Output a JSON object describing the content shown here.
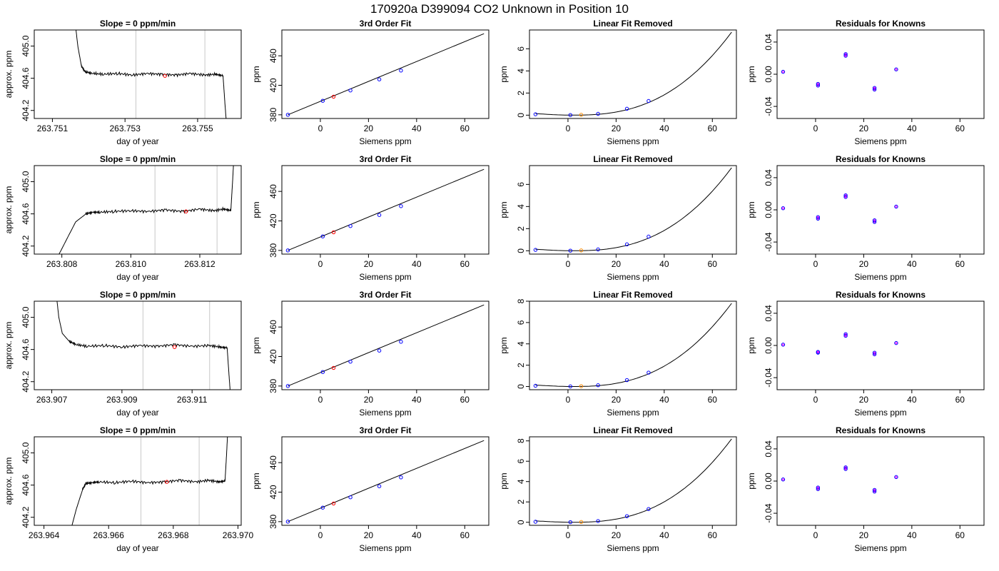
{
  "figure_title": "170920a      D399094    CO2 Unknown in Position  10",
  "colors": {
    "line": "#000000",
    "known": "#0000ff",
    "unknown_fit": "#ff0000",
    "unknown_lin": "#ff8c00",
    "resid_inner": "#ff00ff",
    "vline": "#c8c8c8"
  },
  "chart_data": [
    {
      "row": 0,
      "col": 0,
      "type": "line",
      "title": "Slope =  0  ppm/min",
      "xlabel": "day of year",
      "ylabel": "approx. ppm",
      "xlim": [
        263.7505,
        263.7562
      ],
      "ylim": [
        404.1,
        405.2
      ],
      "xticks": [
        263.751,
        263.753,
        263.755
      ],
      "xticklabels": [
        "263.751",
        "263.753",
        "263.755"
      ],
      "yticks": [
        404.2,
        404.6,
        405.0
      ],
      "yticklabels": [
        "404.2",
        "404.6",
        "405.0"
      ],
      "vlines": [
        263.7533,
        263.7552
      ],
      "series": [
        {
          "x": [
            263.7516,
            263.7517,
            263.7518,
            263.7519,
            263.7521,
            263.7524,
            263.7528,
            263.7532,
            263.7536,
            263.754,
            263.7544,
            263.7548,
            263.7552,
            263.7555,
            263.7557,
            263.75575,
            263.7558
          ],
          "y": [
            405.4,
            405.0,
            404.75,
            404.68,
            404.66,
            404.65,
            404.66,
            404.64,
            404.66,
            404.65,
            404.64,
            404.66,
            404.64,
            404.65,
            404.63,
            404.3,
            404.0
          ]
        }
      ],
      "points": [
        {
          "x": 263.7541,
          "y": 404.63
        }
      ]
    },
    {
      "row": 0,
      "col": 1,
      "type": "line",
      "title": "3rd Order Fit",
      "xlabel": "Siemens ppm",
      "ylabel": "ppm",
      "xlim": [
        -16,
        70
      ],
      "ylim": [
        375,
        495
      ],
      "xticks": [
        0,
        20,
        40,
        60
      ],
      "xticklabels": [
        "0",
        "20",
        "40",
        "60"
      ],
      "yticks": [
        380,
        420,
        460
      ],
      "yticklabels": [
        "380",
        "420",
        "460"
      ],
      "curve": {
        "x": [
          -13.5,
          68
        ],
        "y": [
          380,
          490
        ]
      },
      "known_points": [
        {
          "x": -13.5,
          "y": 380
        },
        {
          "x": 1,
          "y": 399
        },
        {
          "x": 12.5,
          "y": 413
        },
        {
          "x": 24.5,
          "y": 428
        },
        {
          "x": 33.5,
          "y": 440
        }
      ],
      "unknown_point": {
        "x": 5.5,
        "y": 404.6
      }
    },
    {
      "row": 0,
      "col": 2,
      "type": "line",
      "title": "Linear Fit Removed",
      "xlabel": "Siemens ppm",
      "ylabel": "ppm",
      "xlim": [
        -16,
        70
      ],
      "ylim": [
        -0.3,
        7.7
      ],
      "xticks": [
        0,
        20,
        40,
        60
      ],
      "xticklabels": [
        "0",
        "20",
        "40",
        "60"
      ],
      "yticks": [
        0,
        2,
        4,
        6
      ],
      "yticklabels": [
        "0",
        "2",
        "4",
        "6"
      ],
      "curve_end": 7.5,
      "known_points": [
        {
          "x": -13.5,
          "y": 0.08
        },
        {
          "x": 1,
          "y": 0.01
        },
        {
          "x": 12.5,
          "y": 0.12
        },
        {
          "x": 24.5,
          "y": 0.58
        },
        {
          "x": 33.5,
          "y": 1.28
        }
      ],
      "unknown_point": {
        "x": 5.5,
        "y": 0.03
      }
    },
    {
      "row": 0,
      "col": 3,
      "type": "scatter",
      "title": "Residuals for Knowns",
      "xlabel": "Siemens ppm",
      "ylabel": "ppm",
      "xlim": [
        -16,
        70
      ],
      "ylim": [
        -0.055,
        0.055
      ],
      "xticks": [
        0,
        20,
        40,
        60
      ],
      "xticklabels": [
        "0",
        "20",
        "40",
        "60"
      ],
      "yticks": [
        -0.04,
        0.0,
        0.04
      ],
      "yticklabels": [
        "-0.04",
        "0.00",
        "0.04"
      ],
      "points": [
        {
          "x": -13.5,
          "y": 0.003
        },
        {
          "x": 1,
          "y": -0.014
        },
        {
          "x": 1,
          "y": -0.012
        },
        {
          "x": 12.5,
          "y": 0.025
        },
        {
          "x": 12.5,
          "y": 0.023
        },
        {
          "x": 24.5,
          "y": -0.019
        },
        {
          "x": 24.5,
          "y": -0.017
        },
        {
          "x": 33.5,
          "y": 0.006
        }
      ]
    },
    {
      "row": 1,
      "col": 0,
      "type": "line",
      "title": "Slope =  0  ppm/min",
      "xlabel": "day of year",
      "ylabel": "approx. ppm",
      "xlim": [
        263.8072,
        263.8132
      ],
      "ylim": [
        404.1,
        405.2
      ],
      "xticks": [
        263.808,
        263.81,
        263.812
      ],
      "xticklabels": [
        "263.808",
        "263.810",
        "263.812"
      ],
      "yticks": [
        404.2,
        404.6,
        405.0
      ],
      "yticklabels": [
        "404.2",
        "404.6",
        "405.0"
      ],
      "vlines": [
        263.8107,
        263.8125
      ],
      "series": [
        {
          "x": [
            263.8078,
            263.8081,
            263.8084,
            263.8087,
            263.8089,
            263.8091,
            263.8095,
            263.81,
            263.8105,
            263.811,
            263.8115,
            263.812,
            263.8124,
            263.8127,
            263.8129,
            263.81295,
            263.813
          ],
          "y": [
            404.0,
            404.25,
            404.5,
            404.6,
            404.62,
            404.62,
            404.63,
            404.64,
            404.63,
            404.65,
            404.63,
            404.66,
            404.64,
            404.66,
            404.64,
            405.0,
            405.4
          ]
        }
      ],
      "points": [
        {
          "x": 263.8116,
          "y": 404.63
        }
      ]
    },
    {
      "row": 1,
      "col": 1,
      "type": "line",
      "title": "3rd Order Fit",
      "xlabel": "Siemens ppm",
      "ylabel": "ppm",
      "xlim": [
        -16,
        70
      ],
      "ylim": [
        375,
        495
      ],
      "xticks": [
        0,
        20,
        40,
        60
      ],
      "xticklabels": [
        "0",
        "20",
        "40",
        "60"
      ],
      "yticks": [
        380,
        420,
        460
      ],
      "yticklabels": [
        "380",
        "420",
        "460"
      ],
      "curve": {
        "x": [
          -13.5,
          68
        ],
        "y": [
          380,
          490
        ]
      },
      "known_points": [
        {
          "x": -13.5,
          "y": 380
        },
        {
          "x": 1,
          "y": 399
        },
        {
          "x": 12.5,
          "y": 413
        },
        {
          "x": 24.5,
          "y": 428
        },
        {
          "x": 33.5,
          "y": 440
        }
      ],
      "unknown_point": {
        "x": 5.5,
        "y": 404.6
      }
    },
    {
      "row": 1,
      "col": 2,
      "type": "line",
      "title": "Linear Fit Removed",
      "xlabel": "Siemens ppm",
      "ylabel": "ppm",
      "xlim": [
        -16,
        70
      ],
      "ylim": [
        -0.3,
        7.7
      ],
      "xticks": [
        0,
        20,
        40,
        60
      ],
      "xticklabels": [
        "0",
        "20",
        "40",
        "60"
      ],
      "yticks": [
        0,
        2,
        4,
        6
      ],
      "yticklabels": [
        "0",
        "2",
        "4",
        "6"
      ],
      "curve_end": 7.5,
      "known_points": [
        {
          "x": -13.5,
          "y": 0.08
        },
        {
          "x": 1,
          "y": 0.01
        },
        {
          "x": 12.5,
          "y": 0.12
        },
        {
          "x": 24.5,
          "y": 0.58
        },
        {
          "x": 33.5,
          "y": 1.28
        }
      ],
      "unknown_point": {
        "x": 5.5,
        "y": 0.03
      }
    },
    {
      "row": 1,
      "col": 3,
      "type": "scatter",
      "title": "Residuals for Knowns",
      "xlabel": "Siemens ppm",
      "ylabel": "ppm",
      "xlim": [
        -16,
        70
      ],
      "ylim": [
        -0.055,
        0.055
      ],
      "xticks": [
        0,
        20,
        40,
        60
      ],
      "xticklabels": [
        "0",
        "20",
        "40",
        "60"
      ],
      "yticks": [
        -0.04,
        0.0,
        0.04
      ],
      "yticklabels": [
        "-0.04",
        "0.00",
        "0.04"
      ],
      "points": [
        {
          "x": -13.5,
          "y": 0.002
        },
        {
          "x": 1,
          "y": -0.011
        },
        {
          "x": 1,
          "y": -0.009
        },
        {
          "x": 12.5,
          "y": 0.018
        },
        {
          "x": 12.5,
          "y": 0.016
        },
        {
          "x": 24.5,
          "y": -0.015
        },
        {
          "x": 24.5,
          "y": -0.013
        },
        {
          "x": 33.5,
          "y": 0.004
        }
      ]
    },
    {
      "row": 2,
      "col": 0,
      "type": "line",
      "title": "Slope =  0  ppm/min",
      "xlabel": "day of year",
      "ylabel": "approx. ppm",
      "xlim": [
        263.9065,
        263.9124
      ],
      "ylim": [
        404.1,
        405.2
      ],
      "xticks": [
        263.907,
        263.909,
        263.911
      ],
      "xticklabels": [
        "263.907",
        "263.909",
        "263.911"
      ],
      "yticks": [
        404.2,
        404.6,
        405.0
      ],
      "yticklabels": [
        "404.2",
        "404.6",
        "405.0"
      ],
      "vlines": [
        263.9096,
        263.9115
      ],
      "series": [
        {
          "x": [
            263.9071,
            263.9072,
            263.9073,
            263.9075,
            263.9077,
            263.908,
            263.9085,
            263.909,
            263.9095,
            263.91,
            263.9105,
            263.911,
            263.9115,
            263.9118,
            263.912,
            263.91205,
            263.9121
          ],
          "y": [
            405.4,
            405.0,
            404.8,
            404.7,
            404.66,
            404.64,
            404.65,
            404.63,
            404.65,
            404.64,
            404.66,
            404.64,
            404.65,
            404.63,
            404.62,
            404.3,
            404.0
          ]
        }
      ],
      "points": [
        {
          "x": 263.9105,
          "y": 404.63
        }
      ]
    },
    {
      "row": 2,
      "col": 1,
      "type": "line",
      "title": "3rd Order Fit",
      "xlabel": "Siemens ppm",
      "ylabel": "ppm",
      "xlim": [
        -16,
        70
      ],
      "ylim": [
        375,
        495
      ],
      "xticks": [
        0,
        20,
        40,
        60
      ],
      "xticklabels": [
        "0",
        "20",
        "40",
        "60"
      ],
      "yticks": [
        380,
        420,
        460
      ],
      "yticklabels": [
        "380",
        "420",
        "460"
      ],
      "curve": {
        "x": [
          -13.5,
          68
        ],
        "y": [
          380,
          490
        ]
      },
      "known_points": [
        {
          "x": -13.5,
          "y": 380
        },
        {
          "x": 1,
          "y": 399
        },
        {
          "x": 12.5,
          "y": 413
        },
        {
          "x": 24.5,
          "y": 428
        },
        {
          "x": 33.5,
          "y": 440
        }
      ],
      "unknown_point": {
        "x": 5.5,
        "y": 404.6
      }
    },
    {
      "row": 2,
      "col": 2,
      "type": "line",
      "title": "Linear Fit Removed",
      "xlabel": "Siemens ppm",
      "ylabel": "ppm",
      "xlim": [
        -16,
        70
      ],
      "ylim": [
        -0.3,
        8.0
      ],
      "xticks": [
        0,
        20,
        40,
        60
      ],
      "xticklabels": [
        "0",
        "20",
        "40",
        "60"
      ],
      "yticks": [
        0,
        2,
        4,
        6,
        8
      ],
      "yticklabels": [
        "0",
        "2",
        "4",
        "6",
        "8"
      ],
      "curve_end": 7.8,
      "known_points": [
        {
          "x": -13.5,
          "y": 0.07
        },
        {
          "x": 1,
          "y": 0.01
        },
        {
          "x": 12.5,
          "y": 0.12
        },
        {
          "x": 24.5,
          "y": 0.6
        },
        {
          "x": 33.5,
          "y": 1.3
        }
      ],
      "unknown_point": {
        "x": 5.5,
        "y": 0.03
      }
    },
    {
      "row": 2,
      "col": 3,
      "type": "scatter",
      "title": "Residuals for Knowns",
      "xlabel": "Siemens ppm",
      "ylabel": "ppm",
      "xlim": [
        -16,
        70
      ],
      "ylim": [
        -0.055,
        0.055
      ],
      "xticks": [
        0,
        20,
        40,
        60
      ],
      "xticklabels": [
        "0",
        "20",
        "40",
        "60"
      ],
      "yticks": [
        -0.04,
        0.0,
        0.04
      ],
      "yticklabels": [
        "-0.04",
        "0.00",
        "0.04"
      ],
      "points": [
        {
          "x": -13.5,
          "y": 0.001
        },
        {
          "x": 1,
          "y": -0.009
        },
        {
          "x": 1,
          "y": -0.008
        },
        {
          "x": 12.5,
          "y": 0.014
        },
        {
          "x": 12.5,
          "y": 0.012
        },
        {
          "x": 24.5,
          "y": -0.011
        },
        {
          "x": 24.5,
          "y": -0.009
        },
        {
          "x": 33.5,
          "y": 0.003
        }
      ]
    },
    {
      "row": 3,
      "col": 0,
      "type": "line",
      "title": "Slope =  0  ppm/min",
      "xlabel": "day of year",
      "ylabel": "approx. ppm",
      "xlim": [
        263.9637,
        263.9701
      ],
      "ylim": [
        404.1,
        405.2
      ],
      "xticks": [
        263.964,
        263.966,
        263.968,
        263.97
      ],
      "xticklabels": [
        "263.964",
        "263.966",
        "263.968",
        "263.970"
      ],
      "yticks": [
        404.2,
        404.6,
        405.0
      ],
      "yticklabels": [
        "404.2",
        "404.6",
        "405.0"
      ],
      "vlines": [
        263.967,
        263.9688
      ],
      "series": [
        {
          "x": [
            263.9648,
            263.965,
            263.9652,
            263.9653,
            263.9655,
            263.9657,
            263.9662,
            263.9667,
            263.9672,
            263.9677,
            263.9682,
            263.9687,
            263.9691,
            263.9694,
            263.9696,
            263.96965,
            263.9697
          ],
          "y": [
            404.0,
            404.3,
            404.55,
            404.62,
            404.63,
            404.64,
            404.63,
            404.65,
            404.63,
            404.64,
            404.66,
            404.64,
            404.66,
            404.64,
            404.65,
            405.0,
            405.4
          ]
        }
      ],
      "points": [
        {
          "x": 263.9678,
          "y": 404.64
        }
      ]
    },
    {
      "row": 3,
      "col": 1,
      "type": "line",
      "title": "3rd Order Fit",
      "xlabel": "Siemens ppm",
      "ylabel": "ppm",
      "xlim": [
        -16,
        70
      ],
      "ylim": [
        375,
        495
      ],
      "xticks": [
        0,
        20,
        40,
        60
      ],
      "xticklabels": [
        "0",
        "20",
        "40",
        "60"
      ],
      "yticks": [
        380,
        420,
        460
      ],
      "yticklabels": [
        "380",
        "420",
        "460"
      ],
      "curve": {
        "x": [
          -13.5,
          68
        ],
        "y": [
          380,
          490
        ]
      },
      "known_points": [
        {
          "x": -13.5,
          "y": 380
        },
        {
          "x": 1,
          "y": 399
        },
        {
          "x": 12.5,
          "y": 413
        },
        {
          "x": 24.5,
          "y": 428
        },
        {
          "x": 33.5,
          "y": 440
        }
      ],
      "unknown_point": {
        "x": 5.5,
        "y": 404.6
      }
    },
    {
      "row": 3,
      "col": 2,
      "type": "line",
      "title": "Linear Fit Removed",
      "xlabel": "Siemens ppm",
      "ylabel": "ppm",
      "xlim": [
        -16,
        70
      ],
      "ylim": [
        -0.3,
        8.4
      ],
      "xticks": [
        0,
        20,
        40,
        60
      ],
      "xticklabels": [
        "0",
        "20",
        "40",
        "60"
      ],
      "yticks": [
        0,
        2,
        4,
        6,
        8
      ],
      "yticklabels": [
        "0",
        "2",
        "4",
        "6",
        "8"
      ],
      "curve_end": 8.2,
      "known_points": [
        {
          "x": -13.5,
          "y": 0.05
        },
        {
          "x": 1,
          "y": 0.01
        },
        {
          "x": 12.5,
          "y": 0.12
        },
        {
          "x": 24.5,
          "y": 0.6
        },
        {
          "x": 33.5,
          "y": 1.3
        }
      ],
      "unknown_point": {
        "x": 5.5,
        "y": 0.03
      }
    },
    {
      "row": 3,
      "col": 3,
      "type": "scatter",
      "title": "Residuals for Knowns",
      "xlabel": "Siemens ppm",
      "ylabel": "ppm",
      "xlim": [
        -16,
        70
      ],
      "ylim": [
        -0.055,
        0.055
      ],
      "xticks": [
        0,
        20,
        40,
        60
      ],
      "xticklabels": [
        "0",
        "20",
        "40",
        "60"
      ],
      "yticks": [
        -0.04,
        0.0,
        0.04
      ],
      "yticklabels": [
        "-0.04",
        "0.00",
        "0.04"
      ],
      "points": [
        {
          "x": -13.5,
          "y": 0.002
        },
        {
          "x": 1,
          "y": -0.01
        },
        {
          "x": 1,
          "y": -0.008
        },
        {
          "x": 12.5,
          "y": 0.017
        },
        {
          "x": 12.5,
          "y": 0.015
        },
        {
          "x": 24.5,
          "y": -0.013
        },
        {
          "x": 24.5,
          "y": -0.011
        },
        {
          "x": 33.5,
          "y": 0.005
        }
      ]
    }
  ]
}
